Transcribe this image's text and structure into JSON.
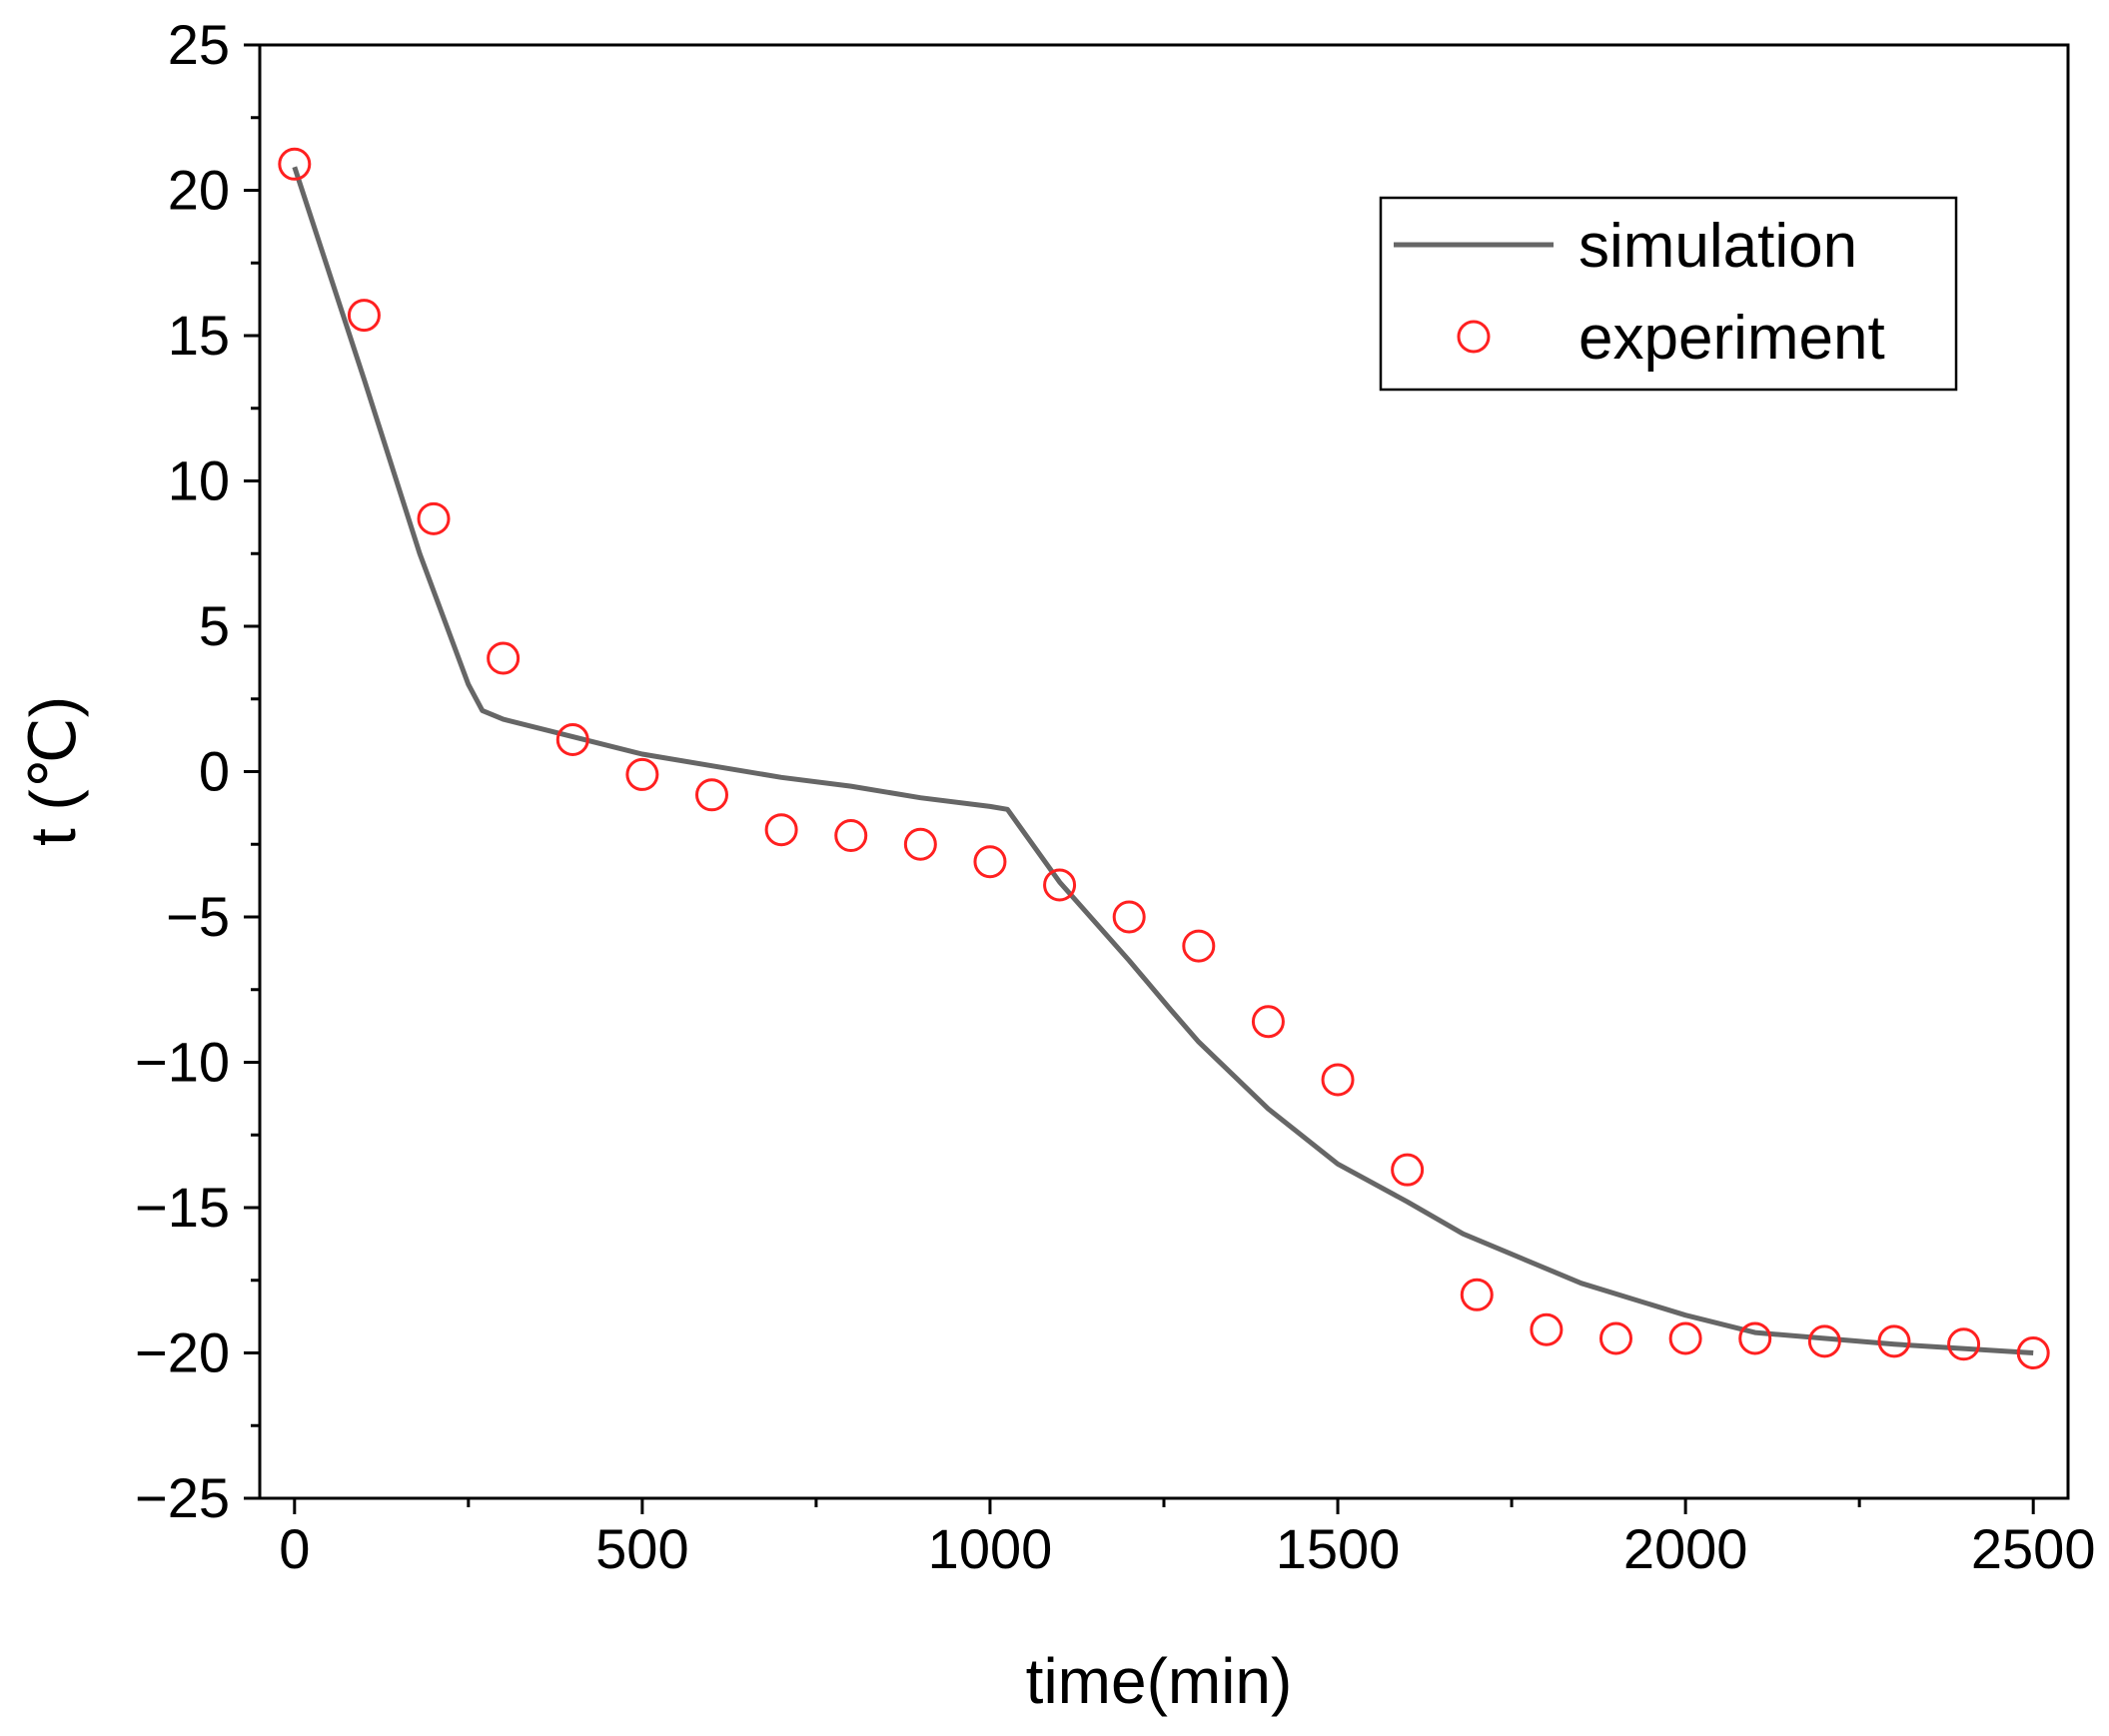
{
  "chart_data": {
    "type": "line",
    "title": "",
    "xlabel": "time(min)",
    "ylabel": "t (℃)",
    "xlim": [
      -50,
      2550
    ],
    "ylim": [
      -25,
      25
    ],
    "xticks": [
      0,
      500,
      1000,
      1500,
      2000,
      2500
    ],
    "xtick_labels": [
      "0",
      "500",
      "1000",
      "1500",
      "2000",
      "2500"
    ],
    "yticks": [
      -25,
      -20,
      -15,
      -10,
      -5,
      0,
      5,
      10,
      15,
      20,
      25
    ],
    "ytick_labels": [
      "−25",
      "−20",
      "−15",
      "−10",
      "−5",
      "0",
      "5",
      "10",
      "15",
      "20",
      "25"
    ],
    "grid": false,
    "legend_position": "top-right",
    "series": [
      {
        "name": "simulation",
        "kind": "line",
        "color": "#666666",
        "x": [
          0,
          100,
          180,
          250,
          270,
          300,
          400,
          500,
          600,
          700,
          800,
          900,
          1000,
          1025,
          1100,
          1200,
          1260,
          1300,
          1400,
          1500,
          1600,
          1680,
          1850,
          2000,
          2100,
          2300,
          2500
        ],
        "y": [
          20.8,
          13.5,
          7.5,
          3.0,
          2.1,
          1.8,
          1.2,
          0.6,
          0.2,
          -0.2,
          -0.5,
          -0.9,
          -1.2,
          -1.3,
          -3.8,
          -6.5,
          -8.2,
          -9.3,
          -11.6,
          -13.5,
          -14.8,
          -15.9,
          -17.6,
          -18.7,
          -19.3,
          -19.7,
          -20.0
        ]
      },
      {
        "name": "experiment",
        "kind": "scatter",
        "color": "#ff2020",
        "x": [
          0,
          100,
          200,
          300,
          400,
          500,
          600,
          700,
          800,
          900,
          1000,
          1100,
          1200,
          1300,
          1400,
          1500,
          1600,
          1700,
          1800,
          1900,
          2000,
          2100,
          2200,
          2300,
          2400,
          2500
        ],
        "y": [
          20.9,
          15.7,
          8.7,
          3.9,
          1.1,
          -0.1,
          -0.8,
          -2.0,
          -2.2,
          -2.5,
          -3.1,
          -3.9,
          -5.0,
          -6.0,
          -8.6,
          -10.6,
          -13.7,
          -18.0,
          -19.2,
          -19.5,
          -19.5,
          -19.5,
          -19.6,
          -19.6,
          -19.7,
          -20.0
        ]
      }
    ]
  }
}
